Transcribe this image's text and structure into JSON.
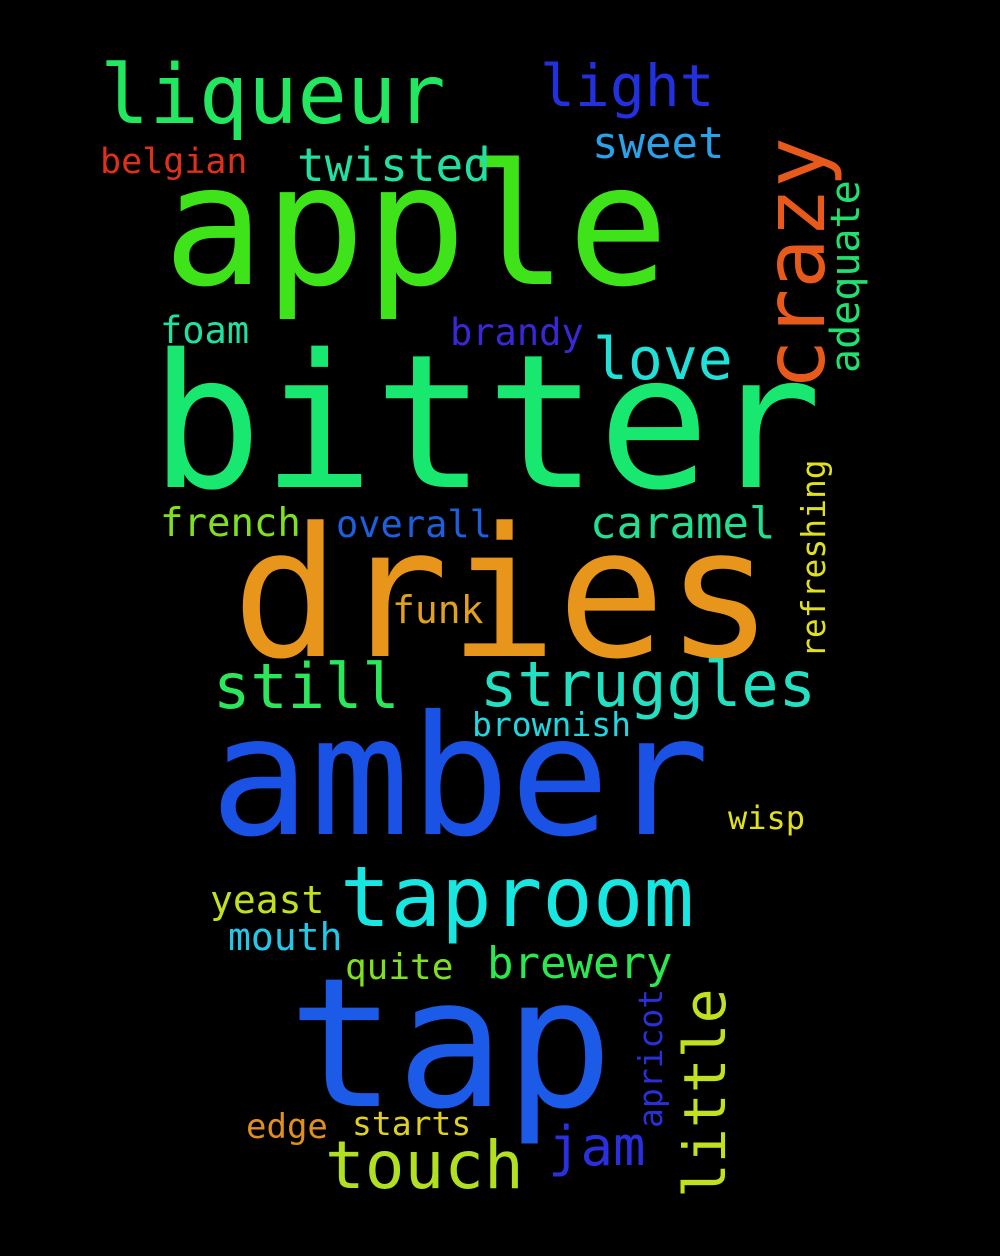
{
  "words": {
    "apple": {
      "text": "apple",
      "color": "#3ee31a"
    },
    "bitter": {
      "text": "bitter",
      "color": "#18e870"
    },
    "dries": {
      "text": "dries",
      "color": "#e8951c"
    },
    "amber": {
      "text": "amber",
      "color": "#1a52e6"
    },
    "tap": {
      "text": "tap",
      "color": "#1c5ae8"
    },
    "taproom": {
      "text": "taproom",
      "color": "#18e6e0"
    },
    "liqueur": {
      "text": "liqueur",
      "color": "#22e860"
    },
    "crazy": {
      "text": "crazy",
      "color": "#e85a1c"
    },
    "light": {
      "text": "light",
      "color": "#2230e0"
    },
    "sweet": {
      "text": "sweet",
      "color": "#2aa2e8"
    },
    "twisted": {
      "text": "twisted",
      "color": "#22e0a0"
    },
    "belgian": {
      "text": "belgian",
      "color": "#e0301c"
    },
    "love": {
      "text": "love",
      "color": "#20e0d8"
    },
    "adequate": {
      "text": "adequate",
      "color": "#22e070"
    },
    "foam": {
      "text": "foam",
      "color": "#22e0a0"
    },
    "brandy": {
      "text": "brandy",
      "color": "#3a28d8"
    },
    "refreshing": {
      "text": "refreshing",
      "color": "#e0e020"
    },
    "french": {
      "text": "french",
      "color": "#7ee020"
    },
    "overall": {
      "text": "overall",
      "color": "#1c60e0"
    },
    "caramel": {
      "text": "caramel",
      "color": "#22e090"
    },
    "funk": {
      "text": "funk",
      "color": "#e0a020"
    },
    "still": {
      "text": "still",
      "color": "#2ae85a"
    },
    "struggles": {
      "text": "struggles",
      "color": "#22e0c0"
    },
    "brownish": {
      "text": "brownish",
      "color": "#22d8e0"
    },
    "wisp": {
      "text": "wisp",
      "color": "#e0e020"
    },
    "yeast": {
      "text": "yeast",
      "color": "#c0e020"
    },
    "mouth": {
      "text": "mouth",
      "color": "#22c8e8"
    },
    "quite": {
      "text": "quite",
      "color": "#7ee020"
    },
    "brewery": {
      "text": "brewery",
      "color": "#2ae850"
    },
    "little": {
      "text": "little",
      "color": "#c0e020"
    },
    "apricot": {
      "text": "apricot",
      "color": "#2a30d8"
    },
    "touch": {
      "text": "touch",
      "color": "#b0e020"
    },
    "jam": {
      "text": "jam",
      "color": "#2a30e0"
    },
    "edge": {
      "text": "edge",
      "color": "#e0901c"
    },
    "starts": {
      "text": "starts",
      "color": "#e0d020"
    }
  }
}
